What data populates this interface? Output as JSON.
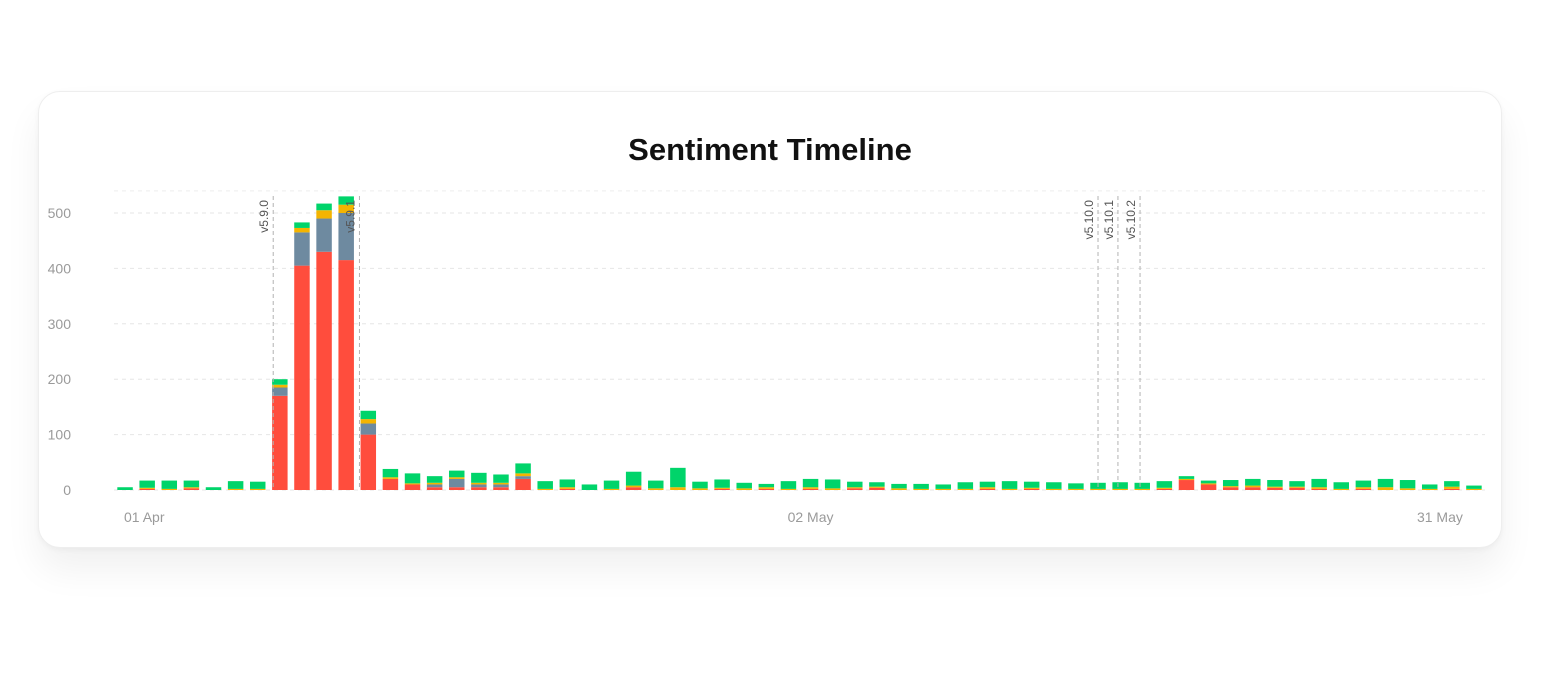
{
  "chart_data": {
    "type": "bar",
    "stacked": true,
    "title": "Sentiment Timeline",
    "xlabel": "",
    "ylabel": "",
    "ylim": [
      0,
      540
    ],
    "yticks": [
      0,
      100,
      200,
      300,
      400,
      500
    ],
    "x_tick_labels": [
      {
        "index": 0,
        "label": "01 Apr"
      },
      {
        "index": 31,
        "label": "02 May"
      },
      {
        "index": 60,
        "label": "31 May"
      }
    ],
    "grid": true,
    "legend": "none",
    "colors": {
      "negative": "#ff4d3d",
      "neutral": "#6e8aa0",
      "mixed": "#f4b400",
      "positive": "#00d46a"
    },
    "series": [
      {
        "key": "negative",
        "values": [
          0,
          2,
          0,
          3,
          0,
          0,
          0,
          170,
          405,
          430,
          415,
          100,
          20,
          10,
          5,
          5,
          5,
          5,
          20,
          0,
          2,
          0,
          0,
          5,
          0,
          0,
          0,
          2,
          0,
          2,
          0,
          2,
          0,
          3,
          4,
          0,
          0,
          0,
          0,
          2,
          0,
          2,
          0,
          0,
          0,
          0,
          0,
          2,
          18,
          10,
          5,
          5,
          4,
          4,
          2,
          0,
          2,
          0,
          0,
          0,
          2,
          0
        ]
      },
      {
        "key": "neutral",
        "values": [
          0,
          0,
          0,
          0,
          0,
          0,
          0,
          15,
          60,
          60,
          85,
          20,
          0,
          0,
          5,
          15,
          5,
          5,
          5,
          0,
          0,
          0,
          0,
          0,
          0,
          0,
          0,
          0,
          0,
          0,
          0,
          0,
          0,
          0,
          0,
          0,
          0,
          0,
          0,
          0,
          0,
          0,
          0,
          0,
          0,
          0,
          0,
          0,
          0,
          0,
          0,
          0,
          0,
          0,
          0,
          0,
          0,
          0,
          0,
          0,
          0,
          0
        ]
      },
      {
        "key": "mixed",
        "values": [
          0,
          2,
          2,
          2,
          0,
          2,
          2,
          5,
          8,
          15,
          15,
          8,
          3,
          2,
          3,
          3,
          3,
          3,
          5,
          2,
          3,
          0,
          2,
          3,
          3,
          5,
          3,
          2,
          3,
          3,
          2,
          3,
          3,
          2,
          2,
          3,
          2,
          2,
          2,
          3,
          2,
          2,
          2,
          2,
          2,
          2,
          2,
          2,
          2,
          2,
          2,
          3,
          2,
          2,
          3,
          2,
          3,
          5,
          3,
          2,
          4,
          2
        ]
      },
      {
        "key": "positive",
        "values": [
          5,
          13,
          15,
          12,
          5,
          14,
          13,
          10,
          10,
          12,
          15,
          15,
          15,
          18,
          12,
          12,
          18,
          15,
          18,
          14,
          14,
          10,
          15,
          25,
          14,
          35,
          12,
          15,
          10,
          6,
          14,
          15,
          16,
          10,
          8,
          8,
          9,
          8,
          12,
          10,
          14,
          11,
          12,
          10,
          11,
          12,
          11,
          12,
          5,
          5,
          11,
          12,
          12,
          10,
          15,
          12,
          12,
          15,
          15,
          8,
          10,
          6
        ]
      }
    ],
    "releases": [
      {
        "label": "v5.9.0",
        "position": 7.2
      },
      {
        "label": "v5.9.1",
        "position": 11.1
      },
      {
        "label": "v5.10.0",
        "position": 44.5
      },
      {
        "label": "v5.10.1",
        "position": 45.4
      },
      {
        "label": "v5.10.2",
        "position": 46.4
      }
    ]
  }
}
